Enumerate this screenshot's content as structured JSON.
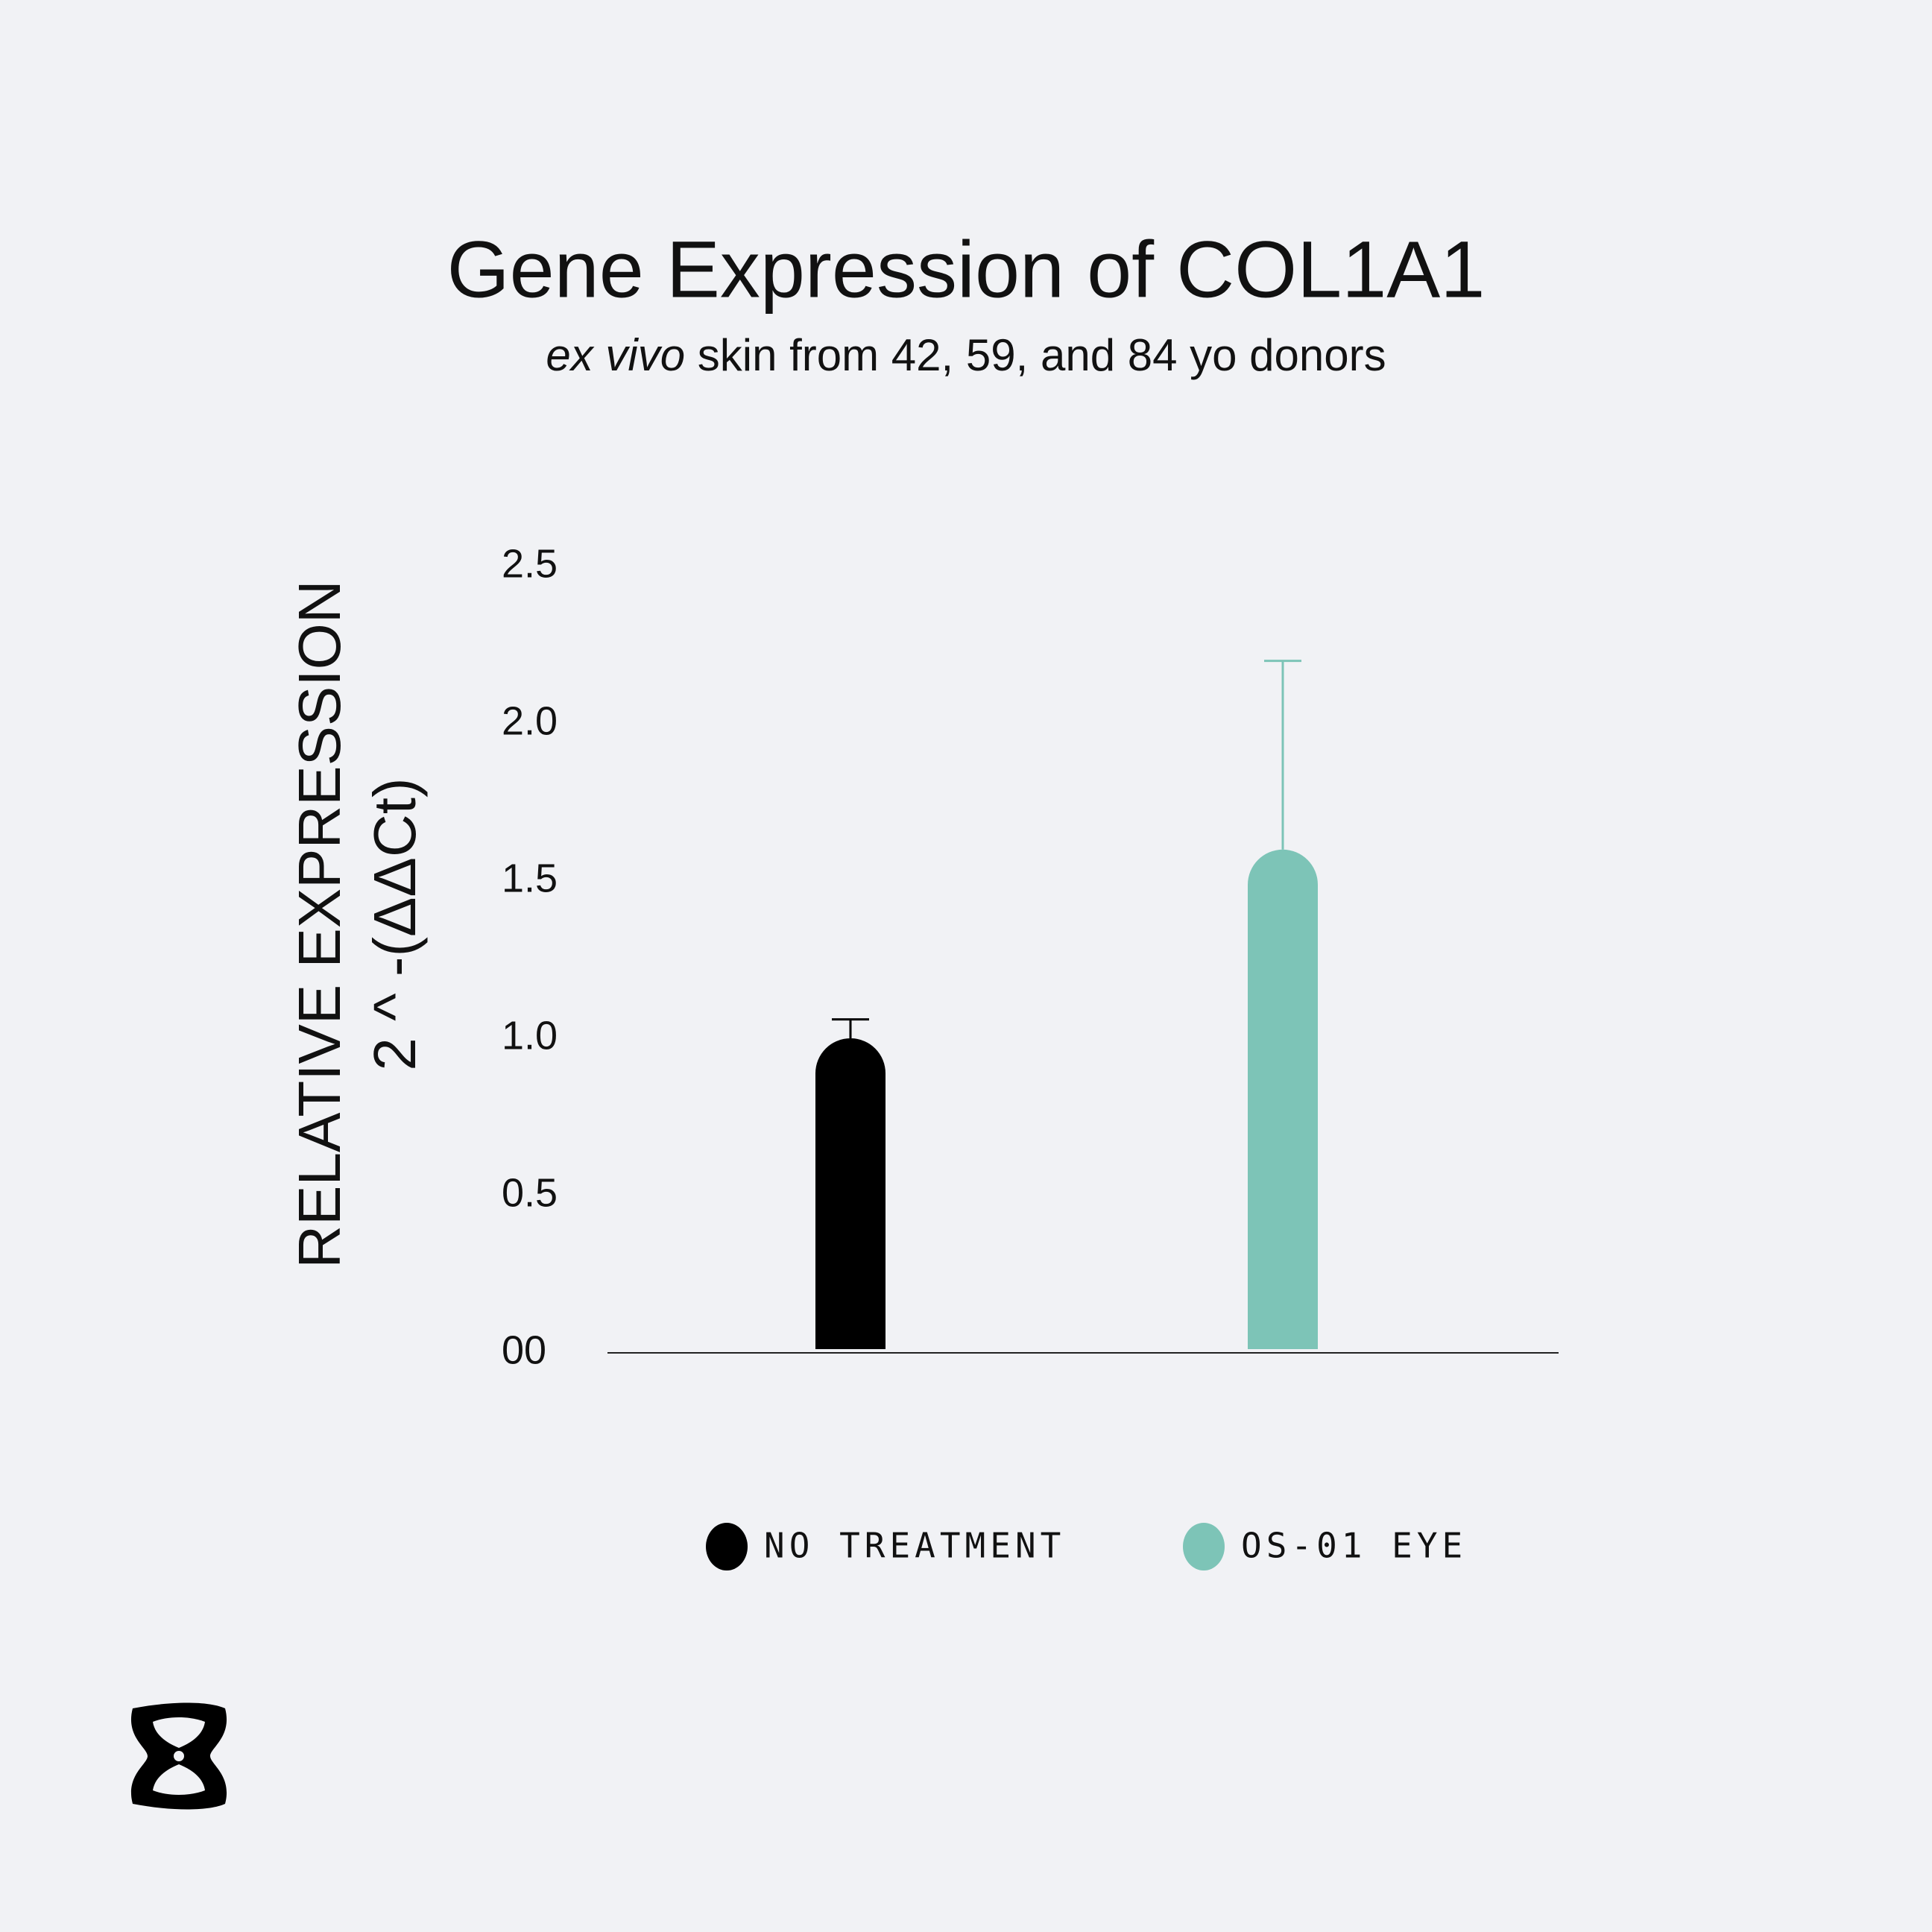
{
  "chart_data": {
    "type": "bar",
    "title": "Gene Expression of COL1A1",
    "subtitle": [
      "ex vivo",
      "skin from 42, 59, and 84 yo donors"
    ],
    "ylabel": [
      "RELATIVE EXPRESSION",
      "2 ^ -(ΔΔCt)"
    ],
    "ylim": [
      0,
      2.5
    ],
    "yticks": [
      {
        "value": 0,
        "label": "00"
      },
      0.5,
      {
        "value": 1,
        "label": "1.0"
      },
      1.5,
      {
        "value": 2,
        "label": "2.0"
      },
      2.5
    ],
    "grid": false,
    "legend": "bottom",
    "series": [
      {
        "name": "NO TREATMENT",
        "color": "#000000",
        "values": [
          1.0
        ],
        "errors": [
          0.06
        ]
      },
      {
        "name": "OS-01 EYE",
        "color": "#7dc4b7",
        "values": [
          1.6
        ],
        "errors": [
          0.6
        ]
      }
    ]
  }
}
